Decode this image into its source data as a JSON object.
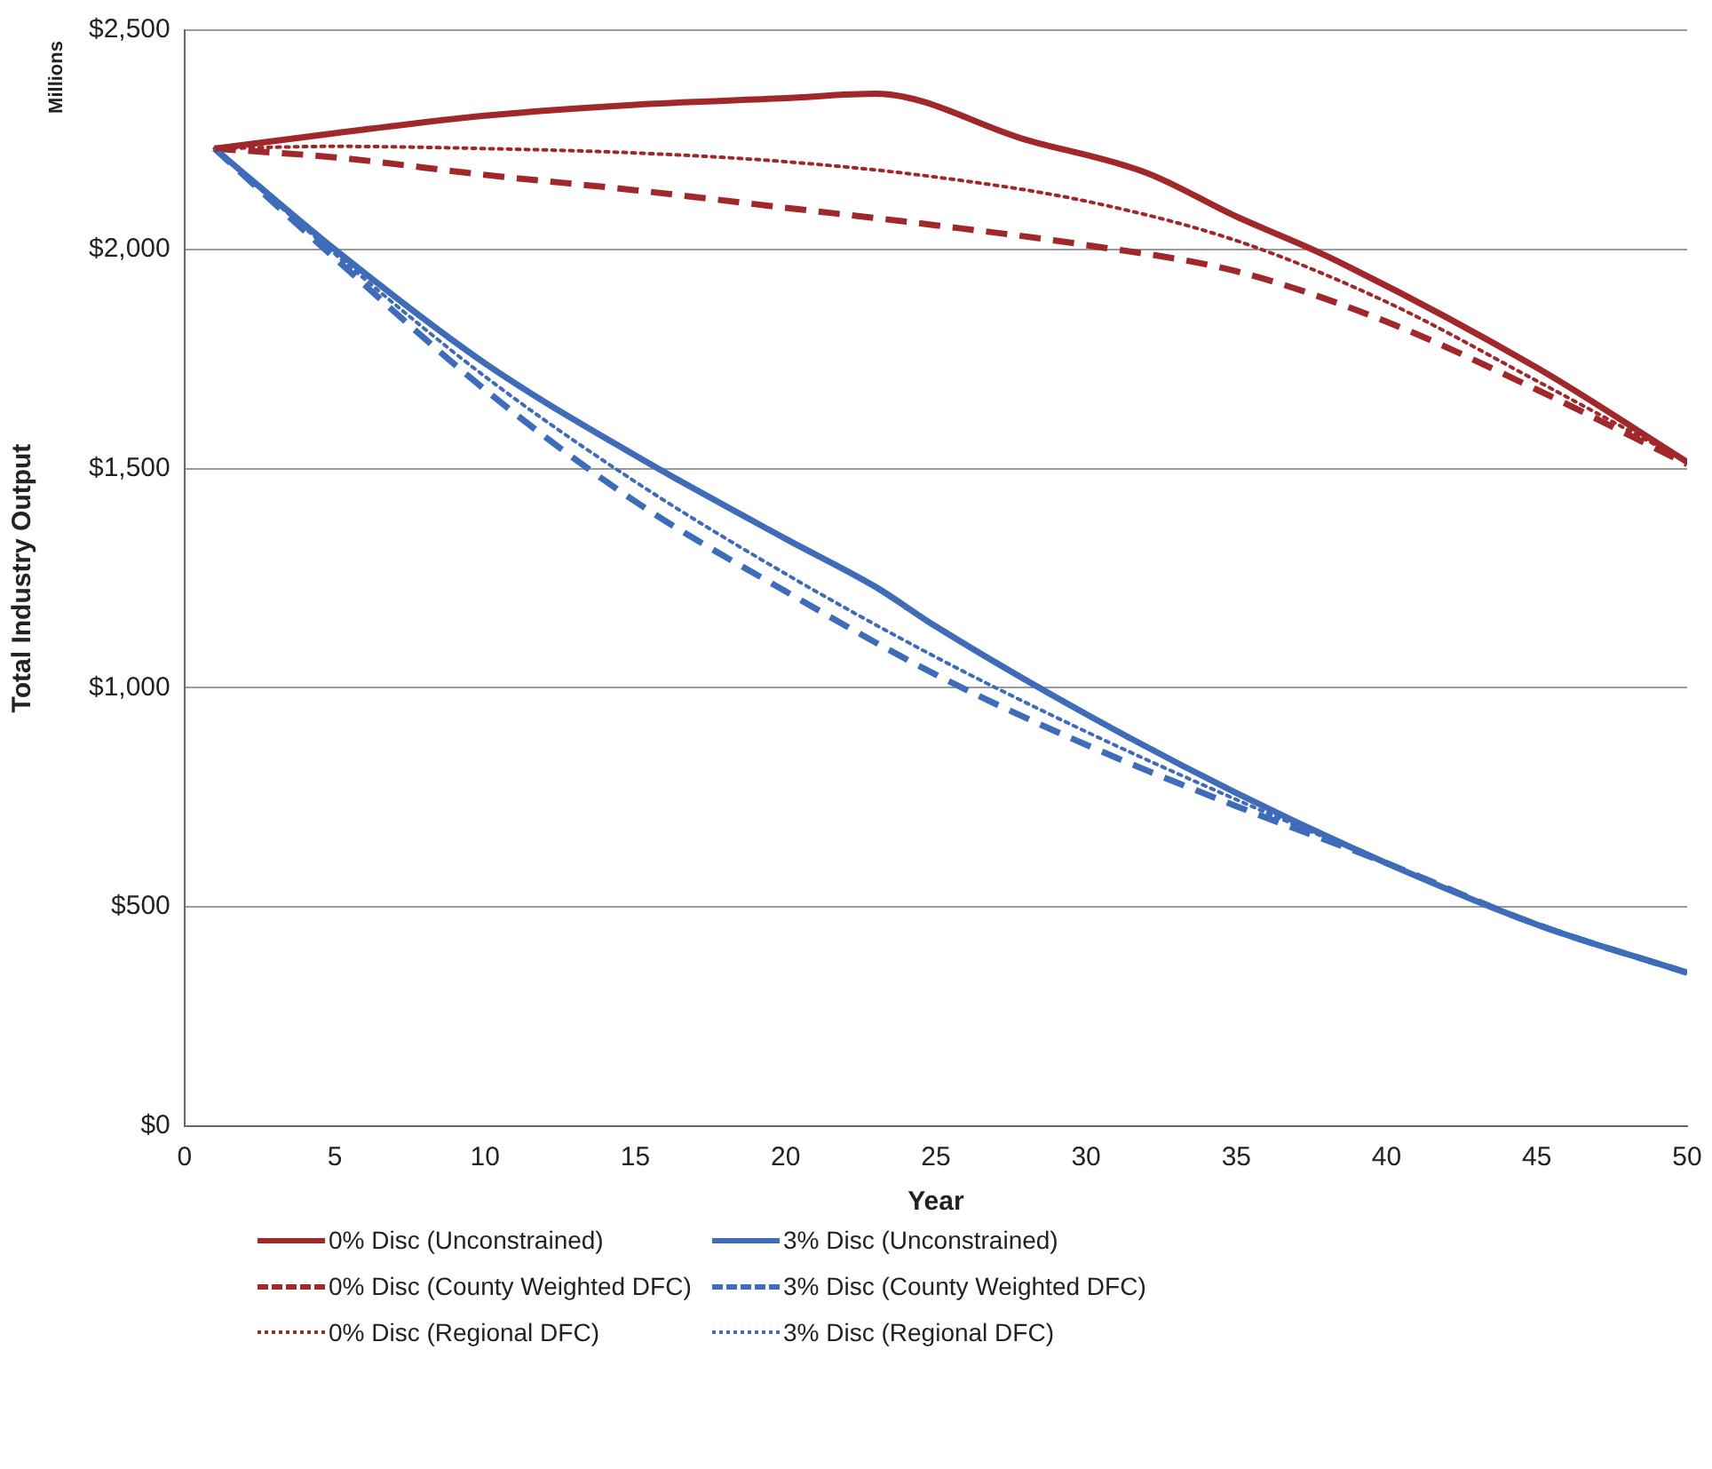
{
  "chart_data": {
    "type": "line",
    "xlabel": "Year",
    "ylabel": "Total Industry Output",
    "annotations": [
      "Millions"
    ],
    "xlim": [
      0,
      50
    ],
    "xticks": [
      0,
      5,
      10,
      15,
      20,
      25,
      30,
      35,
      40,
      45,
      50
    ],
    "ylim": [
      0,
      2500
    ],
    "yticks": [
      {
        "value": 0,
        "label": "$0"
      },
      {
        "value": 500,
        "label": "$500"
      },
      {
        "value": 1000,
        "label": "$1,000"
      },
      {
        "value": 1500,
        "label": "$1,500"
      },
      {
        "value": 2000,
        "label": "$2,000"
      },
      {
        "value": 2500,
        "label": "$2,500"
      }
    ],
    "grid": "y",
    "legend": "bottom",
    "marker": "none",
    "series": [
      {
        "name": "0% Disc (Unconstrained)",
        "color": "#a0282a",
        "line_style": "solid",
        "x": [
          1,
          5,
          10,
          15,
          20,
          23,
          28,
          32,
          35,
          38,
          45,
          50
        ],
        "values": [
          2230,
          2265,
          2305,
          2330,
          2345,
          2355,
          2250,
          2175,
          2075,
          1985,
          1730,
          1515
        ]
      },
      {
        "name": "3% Disc (Unconstrained)",
        "color": "#3f6cb8",
        "line_style": "solid",
        "x": [
          1,
          5,
          10,
          15,
          20,
          23,
          25,
          30,
          35,
          40,
          45,
          50
        ],
        "values": [
          2230,
          2000,
          1740,
          1530,
          1340,
          1230,
          1140,
          940,
          760,
          600,
          460,
          350
        ]
      },
      {
        "name": "0% Disc (County Weighted DFC)",
        "color": "#a0282a",
        "line_style": "dashed",
        "x": [
          1,
          5,
          10,
          15,
          20,
          25,
          30,
          35,
          40,
          45,
          50
        ],
        "values": [
          2230,
          2210,
          2170,
          2135,
          2095,
          2055,
          2010,
          1950,
          1835,
          1680,
          1510
        ]
      },
      {
        "name": "3% Disc (County Weighted DFC)",
        "color": "#3f6cb8",
        "line_style": "dashed",
        "x": [
          1,
          5,
          10,
          15,
          20,
          25,
          30,
          35,
          40,
          45,
          50
        ],
        "values": [
          2230,
          1980,
          1680,
          1425,
          1220,
          1030,
          870,
          730,
          600,
          460,
          350
        ]
      },
      {
        "name": "0% Disc (Regional DFC)",
        "color": "#a0282a",
        "line_style": "dotted",
        "x": [
          1,
          5,
          10,
          15,
          20,
          25,
          30,
          35,
          40,
          45,
          50
        ],
        "values": [
          2230,
          2235,
          2230,
          2220,
          2200,
          2165,
          2110,
          2020,
          1880,
          1700,
          1515
        ]
      },
      {
        "name": "3% Disc (Regional DFC)",
        "color": "#3f6cb8",
        "line_style": "dotted",
        "x": [
          1,
          5,
          10,
          15,
          20,
          25,
          30,
          35,
          40,
          45,
          50
        ],
        "values": [
          2230,
          1990,
          1710,
          1470,
          1260,
          1070,
          900,
          745,
          600,
          460,
          350
        ]
      }
    ]
  }
}
